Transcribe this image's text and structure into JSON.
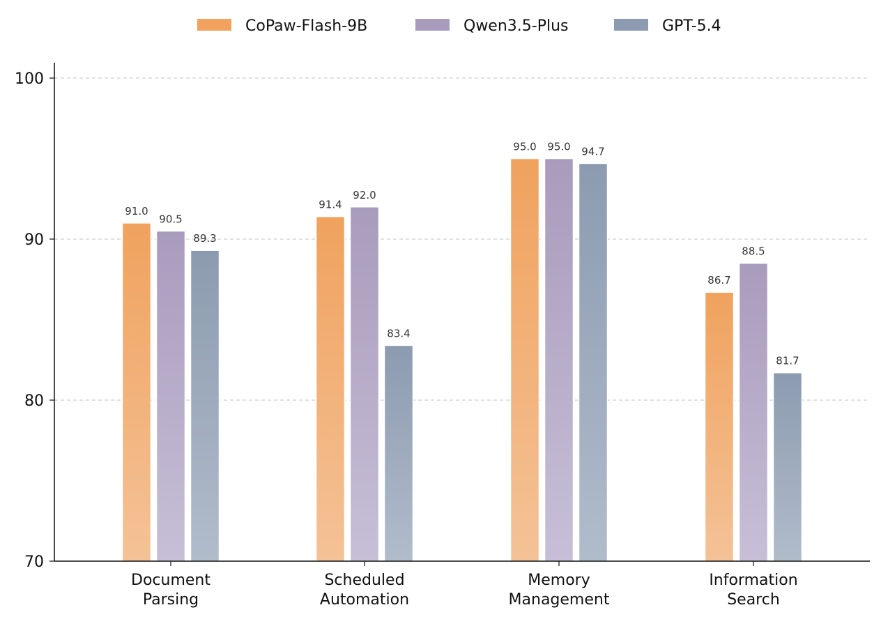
{
  "chart_data": {
    "type": "bar",
    "title": "",
    "xlabel": "",
    "ylabel": "",
    "ylim": [
      70,
      100
    ],
    "yticks": [
      70,
      80,
      90,
      100
    ],
    "grid": true,
    "legend_position": "top-center",
    "categories": [
      [
        "Document",
        "Parsing"
      ],
      [
        "Scheduled",
        "Automation"
      ],
      [
        "Memory",
        "Management"
      ],
      [
        "Information",
        "Search"
      ]
    ],
    "series": [
      {
        "name": "CoPaw-Flash-9B",
        "values": [
          91.0,
          91.4,
          95.0,
          86.7
        ],
        "labels": [
          "91.0",
          "91.4",
          "95.0",
          "86.7"
        ],
        "color_top": "#f0a25e",
        "color_bottom": "#f4c297",
        "legend_color": "#f0a25e"
      },
      {
        "name": "Qwen3.5-Plus",
        "values": [
          90.5,
          92.0,
          95.0,
          88.5
        ],
        "labels": [
          "90.5",
          "92.0",
          "95.0",
          "88.5"
        ],
        "color_top": "#a99bbc",
        "color_bottom": "#c7bfd7",
        "legend_color": "#a99bbc"
      },
      {
        "name": "GPT-5.4",
        "values": [
          89.3,
          83.4,
          94.7,
          81.7
        ],
        "labels": [
          "89.3",
          "83.4",
          "94.7",
          "81.7"
        ],
        "color_top": "#8c9bb0",
        "color_bottom": "#b1bccb",
        "legend_color": "#8c9bb0"
      }
    ]
  }
}
